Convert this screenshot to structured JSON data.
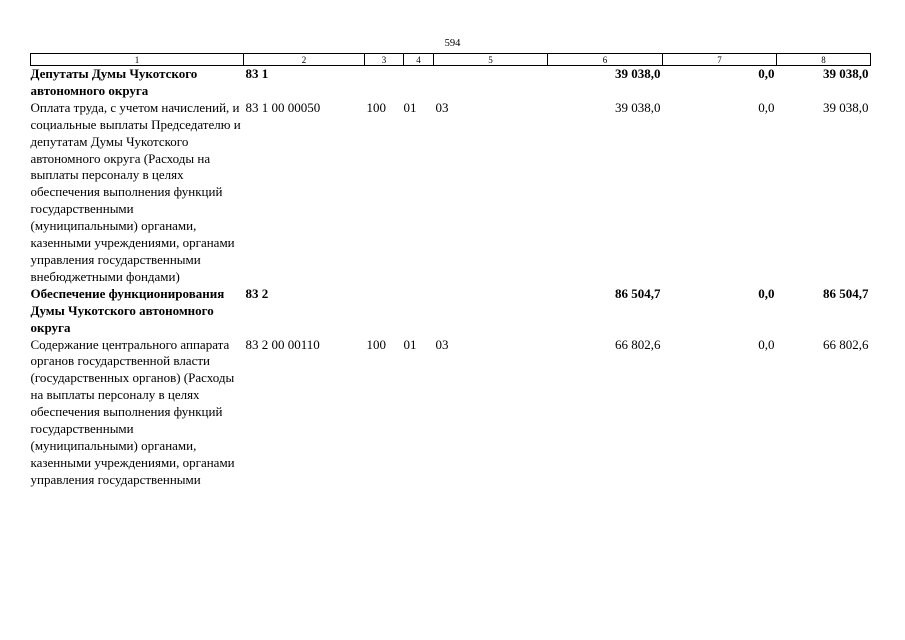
{
  "page_number": "594",
  "columns": [
    "1",
    "2",
    "3",
    "4",
    "5",
    "6",
    "7",
    "8"
  ],
  "rows": [
    {
      "bold": true,
      "name": "Депутаты Думы Чукотского автономного округа",
      "code": "83 1",
      "c3": "",
      "c4": "",
      "c5": "",
      "c6": "39 038,0",
      "c7": "0,0",
      "c8": "39 038,0"
    },
    {
      "bold": false,
      "name": "Оплата труда, с учетом начислений, и социальные выплаты Председателю и депутатам Думы Чукотского автономного округа (Расходы на выплаты персоналу в целях обеспечения выполнения функций государственными (муниципальными) органами, казенными учреждениями, органами управления государственными внебюджетными фондами)",
      "code": "83 1 00 00050",
      "c3": "100",
      "c4": "01",
      "c5": "03",
      "c6": "39 038,0",
      "c7": "0,0",
      "c8": "39 038,0"
    },
    {
      "bold": true,
      "name": "Обеспечение функционирования Думы Чукотского автономного округа",
      "code": "83 2",
      "c3": "",
      "c4": "",
      "c5": "",
      "c6": "86 504,7",
      "c7": "0,0",
      "c8": "86 504,7"
    },
    {
      "bold": false,
      "name": "Содержание центрального аппарата органов государственной власти (государственных органов) (Расходы на выплаты персоналу в целях обеспечения выполнения функций государственными (муниципальными) органами, казенными учреждениями, органами управления государственными",
      "code": "83 2 00 00110",
      "c3": "100",
      "c4": "01",
      "c5": "03",
      "c6": "66 802,6",
      "c7": "0,0",
      "c8": "66 802,6"
    }
  ]
}
